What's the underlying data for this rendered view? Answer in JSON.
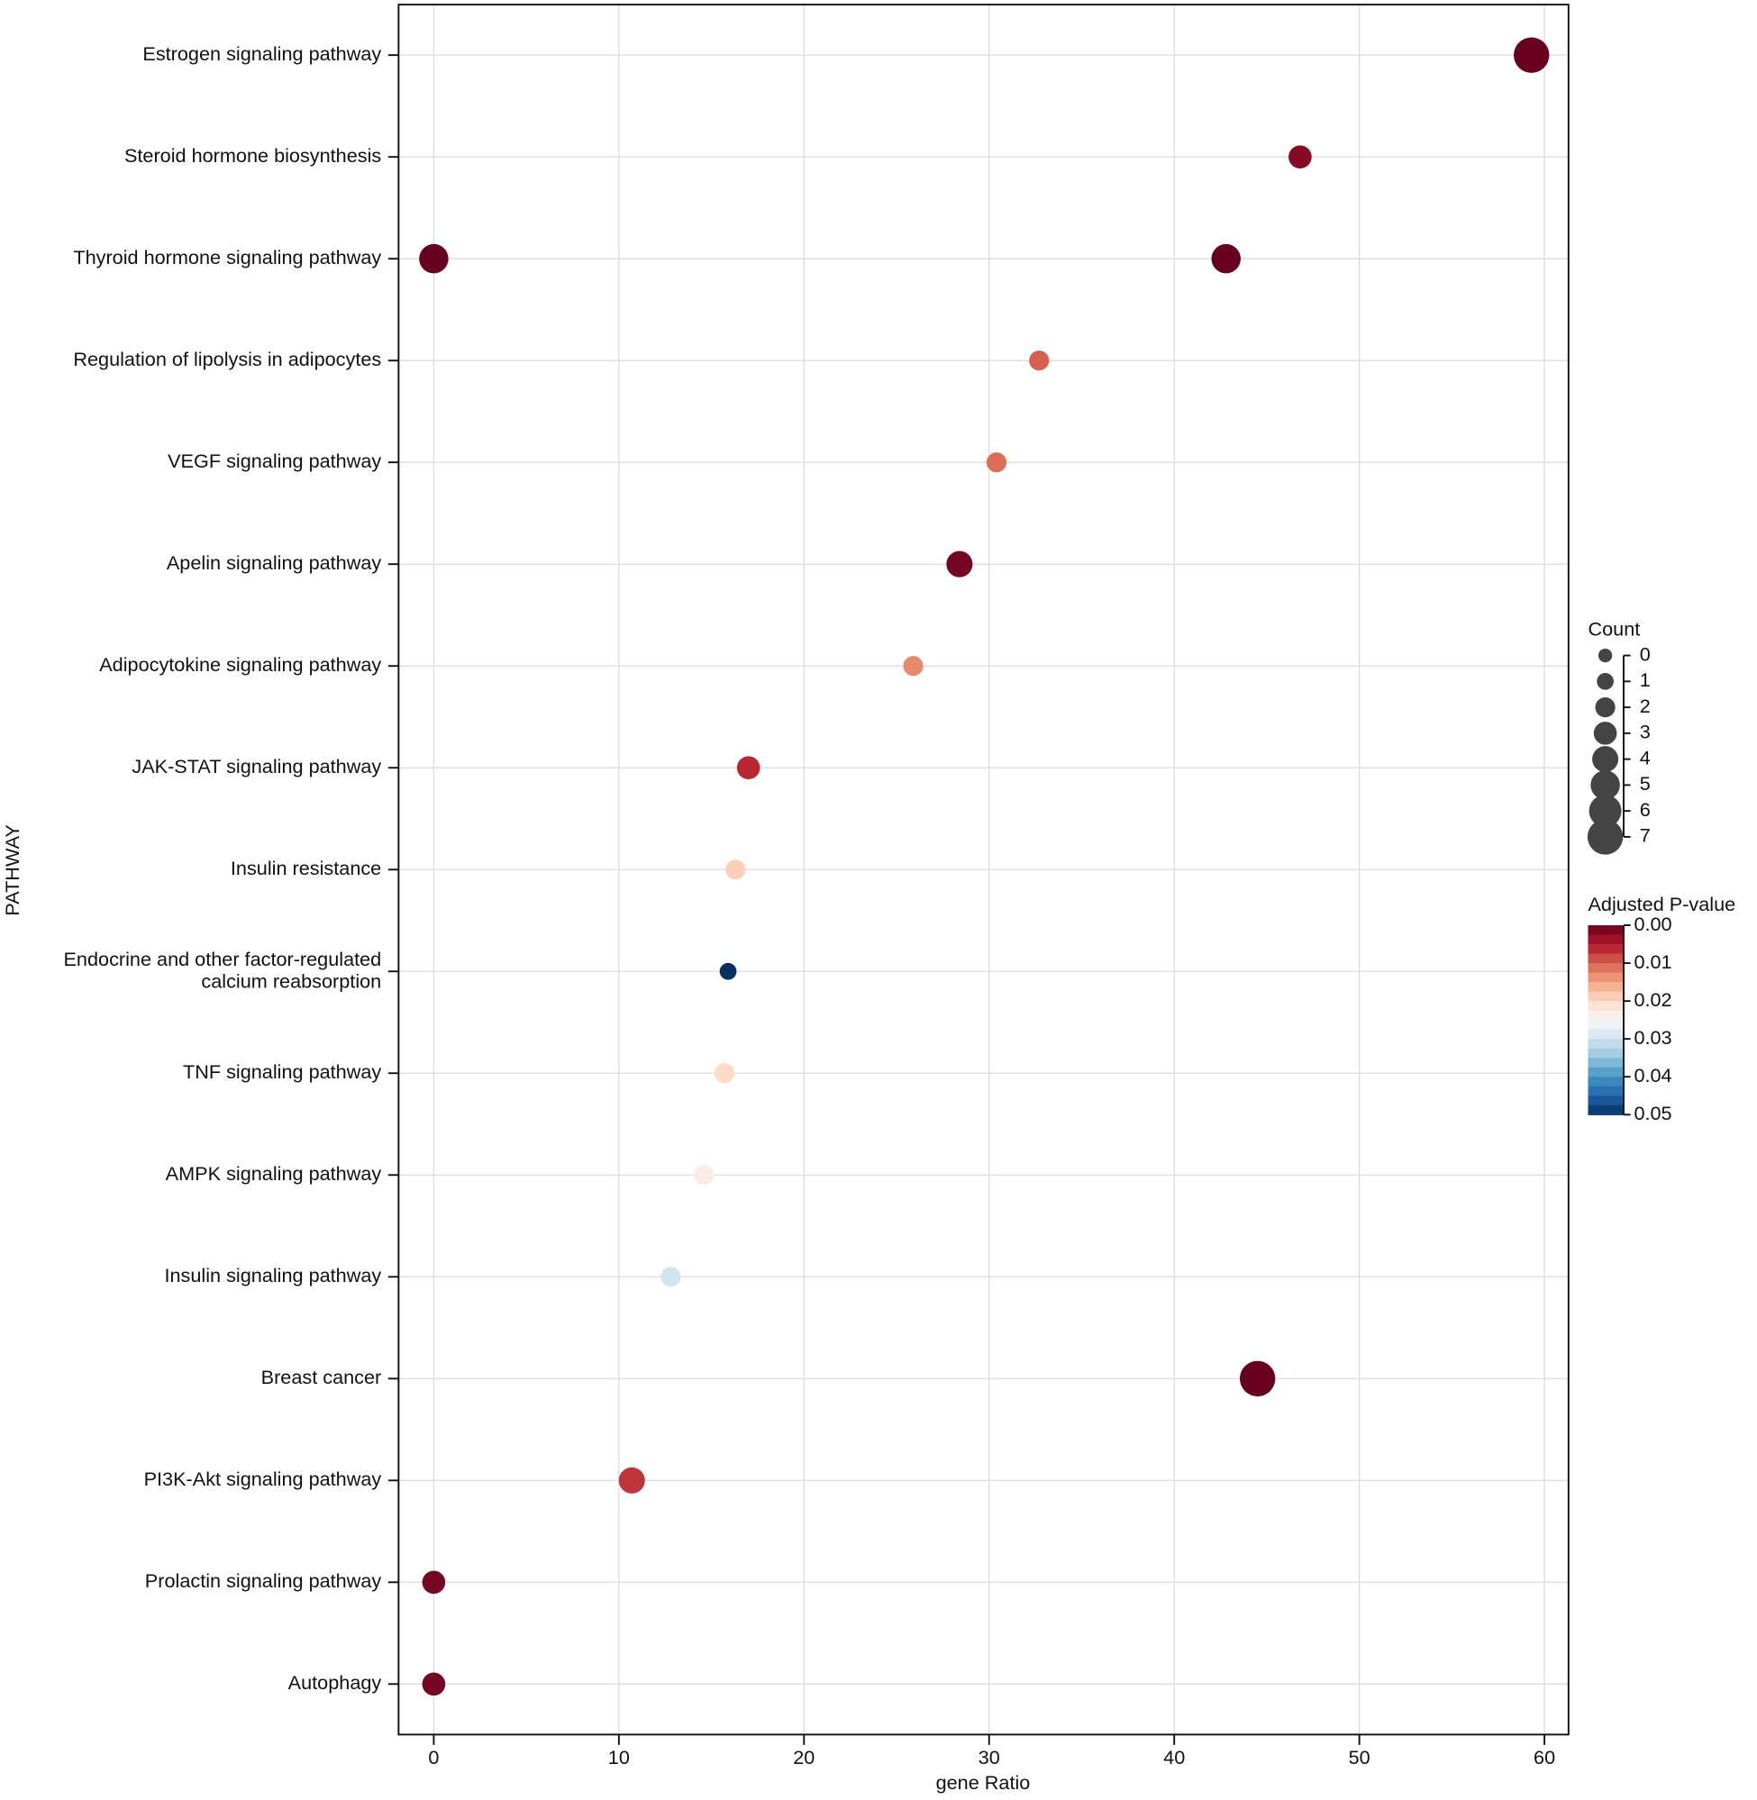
{
  "chart_data": {
    "type": "dotplot",
    "ylabel": "PATHWAY",
    "xlabel": "gene Ratio",
    "categories": [
      "Estrogen signaling pathway",
      "Steroid hormone biosynthesis",
      "Thyroid hormone signaling pathway",
      "Regulation of lipolysis in adipocytes",
      "VEGF signaling pathway",
      "Apelin signaling pathway",
      "Adipocytokine signaling pathway",
      "JAK-STAT signaling pathway",
      "Insulin resistance",
      "Endocrine and other factor-regulated\ncalcium reabsorption",
      "TNF signaling pathway",
      "AMPK signaling pathway",
      "Insulin signaling pathway",
      "Breast cancer",
      "PI3K-Akt signaling pathway",
      "Prolactin signaling pathway",
      "Autophagy"
    ],
    "series": [
      {
        "x": [
          59.3,
          46.8,
          42.8,
          32.7,
          30.4,
          28.4,
          25.9,
          17.0,
          16.3,
          15.9,
          15.7,
          14.6,
          12.8,
          44.5,
          10.7,
          0,
          0
        ],
        "count": [
          7,
          3,
          5,
          2,
          2,
          4,
          2,
          3,
          2,
          1,
          2,
          2,
          2,
          7,
          4,
          3,
          3
        ],
        "padj": [
          0.0,
          0.002,
          0.0,
          0.01,
          0.011,
          0.001,
          0.013,
          0.006,
          0.019,
          0.05,
          0.02,
          0.023,
          0.03,
          0.0,
          0.007,
          0.001,
          0.001
        ]
      },
      {
        "x": [
          null,
          null,
          0,
          null,
          null,
          null,
          null,
          null,
          null,
          null,
          null,
          null,
          null,
          null,
          null,
          null,
          null
        ],
        "count": [
          null,
          null,
          5,
          null,
          null,
          null,
          null,
          null,
          null,
          null,
          null,
          null,
          null,
          null,
          null,
          null,
          null
        ],
        "padj": [
          null,
          null,
          0.0,
          null,
          null,
          null,
          null,
          null,
          null,
          null,
          null,
          null,
          null,
          null,
          null,
          null,
          null
        ]
      }
    ],
    "xlim": [
      -1.9,
      61.3
    ],
    "xticks": [
      0,
      10,
      20,
      30,
      40,
      50,
      60
    ],
    "grid": true,
    "size_legend": {
      "title": "Count",
      "ticks": [
        0,
        1,
        2,
        3,
        4,
        5,
        6,
        7
      ]
    },
    "color_legend": {
      "title": "Adjusted P-value",
      "lim": [
        0,
        0.05
      ],
      "ticks": [
        {
          "value": 0,
          "label": "0.00"
        },
        {
          "value": 0.01,
          "label": "0.01"
        },
        {
          "value": 0.02,
          "label": "0.02"
        },
        {
          "value": 0.03,
          "label": "0.03"
        },
        {
          "value": 0.04,
          "label": "0.04"
        },
        {
          "value": 0.05,
          "label": "0.05"
        }
      ],
      "colors": [
        "#67001f",
        "#b2182b",
        "#d6604d",
        "#f4a582",
        "#fddbc7",
        "#f7f7f7",
        "#d1e5f0",
        "#92c5de",
        "#4393c3",
        "#2166ac",
        "#053061"
      ]
    }
  }
}
